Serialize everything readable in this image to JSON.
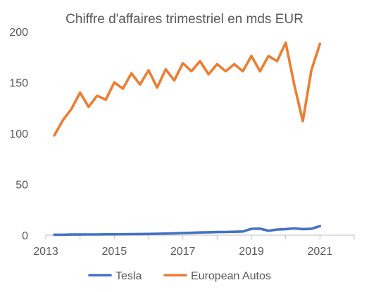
{
  "chart_data": {
    "type": "line",
    "title": "Chiffre d'affaires trimestriel en mds EUR",
    "xlabel": "",
    "ylabel": "",
    "x_ticks": [
      "2013",
      "2015",
      "2017",
      "2019",
      "2021"
    ],
    "y_ticks": [
      "0",
      "50",
      "100",
      "150",
      "200"
    ],
    "xlim": [
      2013,
      2022
    ],
    "ylim": [
      0,
      200
    ],
    "grid": false,
    "legend_position": "bottom",
    "x": [
      2013.25,
      2013.5,
      2013.75,
      2014.0,
      2014.25,
      2014.5,
      2014.75,
      2015.0,
      2015.25,
      2015.5,
      2015.75,
      2016.0,
      2016.25,
      2016.5,
      2016.75,
      2017.0,
      2017.25,
      2017.5,
      2017.75,
      2018.0,
      2018.25,
      2018.5,
      2018.75,
      2019.0,
      2019.25,
      2019.5,
      2019.75,
      2020.0,
      2020.25,
      2020.5,
      2020.75,
      2021.0
    ],
    "series": [
      {
        "name": "Tesla",
        "color": "#4472C4",
        "values": [
          0.4,
          0.4,
          0.6,
          0.6,
          0.7,
          0.7,
          0.8,
          0.8,
          0.9,
          1.0,
          1.1,
          1.2,
          1.4,
          1.6,
          1.8,
          2.1,
          2.3,
          2.6,
          2.8,
          3.0,
          3.1,
          3.3,
          3.6,
          6.2,
          6.4,
          4.3,
          5.5,
          5.9,
          6.7,
          5.9,
          6.3,
          8.8
        ]
      },
      {
        "name": "European Autos",
        "color": "#ED7D31",
        "values": [
          98,
          113,
          124,
          140,
          126,
          137,
          133,
          150,
          144,
          159,
          148,
          162,
          145,
          163,
          152,
          169,
          161,
          171,
          158,
          168,
          161,
          168,
          161,
          176,
          161,
          176,
          171,
          189,
          148,
          112,
          162,
          188
        ]
      }
    ]
  }
}
